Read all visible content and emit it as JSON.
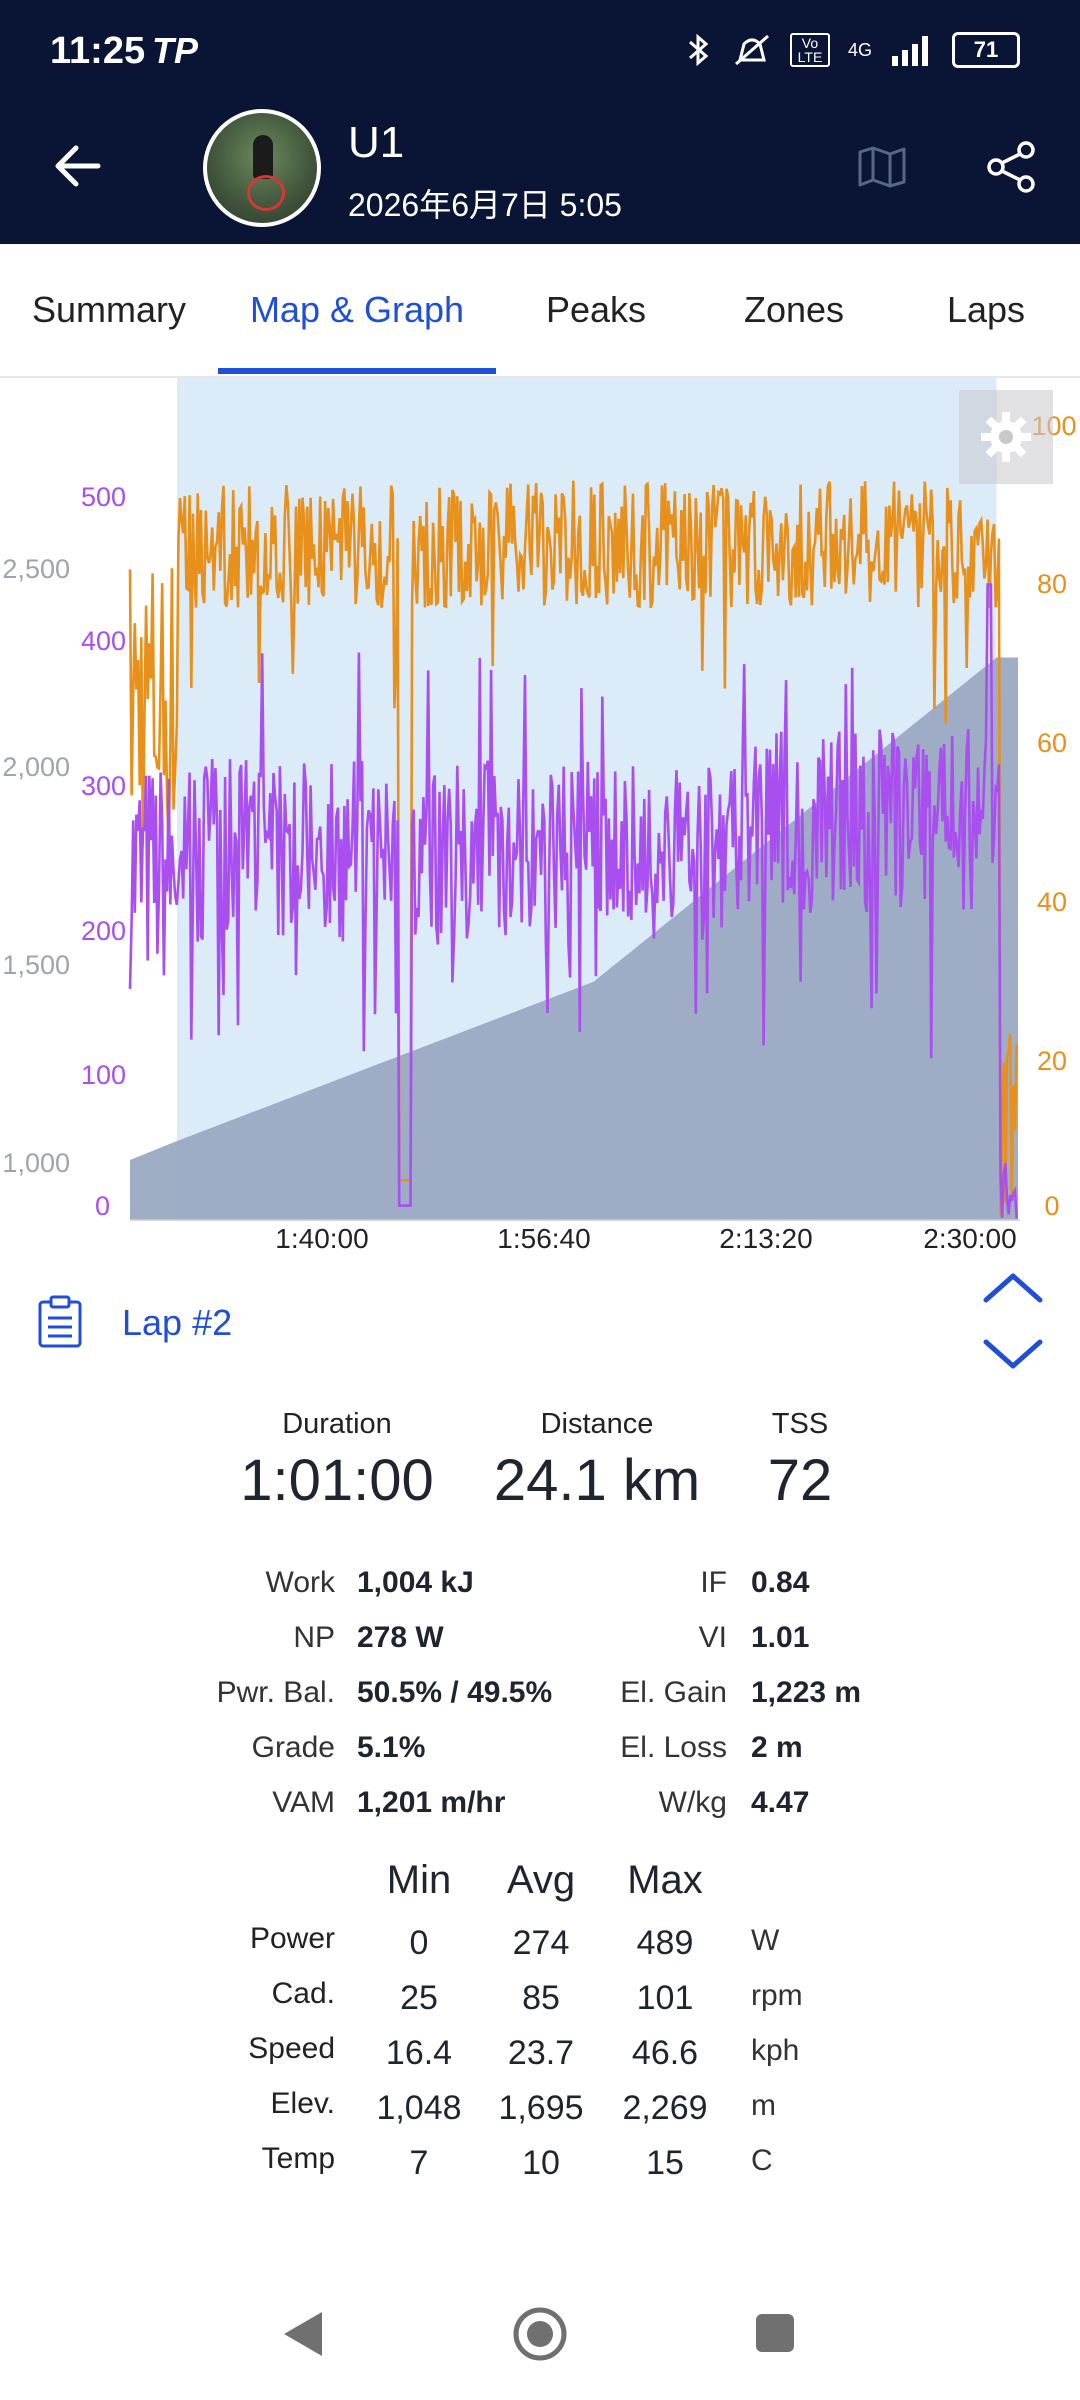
{
  "status_bar": {
    "time": "11:25",
    "carrier_logo": "TP",
    "network": "4G",
    "volte": "Vo LTE",
    "battery": "71"
  },
  "header": {
    "user_name": "U1",
    "date": "2026年6月7日 5:05"
  },
  "tabs": [
    {
      "label": "Summary",
      "active": false
    },
    {
      "label": "Map & Graph",
      "active": true
    },
    {
      "label": "Peaks",
      "active": false
    },
    {
      "label": "Zones",
      "active": false
    },
    {
      "label": "Laps",
      "active": false
    }
  ],
  "chart_data": {
    "type": "line",
    "x_ticks": [
      "1:40:00",
      "1:56:40",
      "2:13:20",
      "2:30:00"
    ],
    "elevation_axis_ticks": [
      "2,500",
      "2,000",
      "1,500",
      "1,000"
    ],
    "power_axis_ticks": [
      "500",
      "400",
      "300",
      "200",
      "100",
      "0"
    ],
    "cadence_axis_ticks": [
      "100",
      "80",
      "60",
      "40",
      "20",
      "0"
    ],
    "colors": {
      "power": "#a94ff0",
      "cadence": "#e8901c",
      "elevation": "#9aa9c2",
      "highlight": "#dcebf8",
      "elevation_axis": "#a0a4ab"
    },
    "selected_range": [
      "1:29:00",
      "2:30:00"
    ],
    "elevation_profile": [
      {
        "t": 85.5,
        "elev": 1000
      },
      {
        "t": 89,
        "elev": 1048
      },
      {
        "t": 120,
        "elev": 1450
      },
      {
        "t": 150,
        "elev": 2269
      },
      {
        "t": 151.6,
        "elev": 2269
      }
    ]
  },
  "lap": {
    "title": "Lap #2"
  },
  "summary": [
    {
      "label": "Duration",
      "value": "1:01:00"
    },
    {
      "label": "Distance",
      "value": "24.1 km"
    },
    {
      "label": "TSS",
      "value": "72"
    }
  ],
  "stats_left": [
    {
      "label": "Work",
      "value": "1,004 kJ"
    },
    {
      "label": "NP",
      "value": "278 W"
    },
    {
      "label": "Pwr. Bal.",
      "value": "50.5% / 49.5%"
    },
    {
      "label": "Grade",
      "value": "5.1%"
    },
    {
      "label": "VAM",
      "value": "1,201 m/hr"
    }
  ],
  "stats_right": [
    {
      "label": "IF",
      "value": "0.84"
    },
    {
      "label": "VI",
      "value": "1.01"
    },
    {
      "label": "El. Gain",
      "value": "1,223 m"
    },
    {
      "label": "El. Loss",
      "value": "2 m"
    },
    {
      "label": "W/kg",
      "value": "4.47"
    }
  ],
  "minmax": {
    "headers": [
      "Min",
      "Avg",
      "Max"
    ],
    "rows": [
      {
        "label": "Power",
        "min": "0",
        "avg": "274",
        "max": "489",
        "unit": "W"
      },
      {
        "label": "Cad.",
        "min": "25",
        "avg": "85",
        "max": "101",
        "unit": "rpm"
      },
      {
        "label": "Speed",
        "min": "16.4",
        "avg": "23.7",
        "max": "46.6",
        "unit": "kph"
      },
      {
        "label": "Elev.",
        "min": "1,048",
        "avg": "1,695",
        "max": "2,269",
        "unit": "m"
      },
      {
        "label": "Temp",
        "min": "7",
        "avg": "10",
        "max": "15",
        "unit": "C"
      }
    ]
  }
}
